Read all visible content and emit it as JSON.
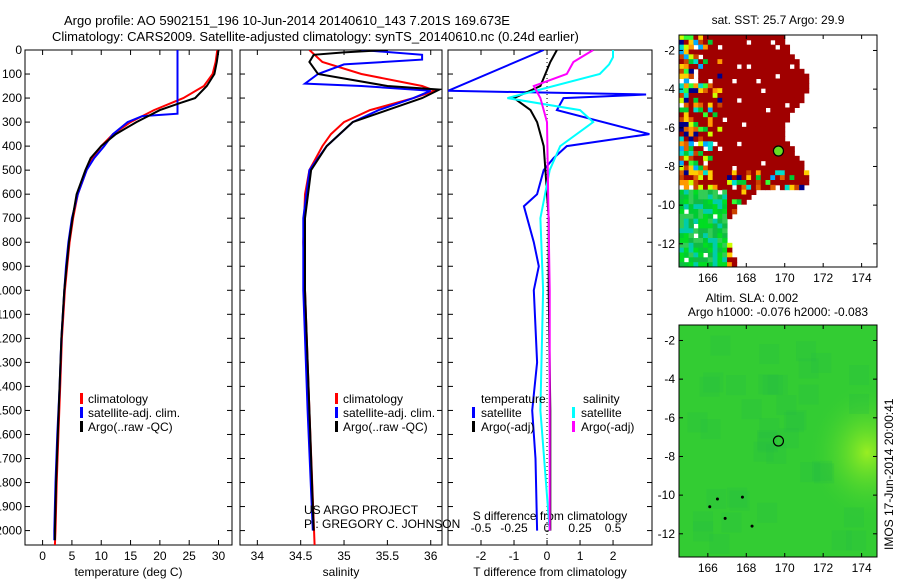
{
  "header": {
    "line1": "Argo profile: AO 5902151_196 10-Jun-2014 20140610_143 7.201S 169.673E",
    "line2": "Climatology: CARS2009. Satellite-adjusted climatology: synTS_20140610.nc (0.24d earlier)"
  },
  "colors": {
    "climatology": "#ff0000",
    "satellite": "#0000ff",
    "argo": "#000000",
    "sal_sat": "#00ffff",
    "sal_argo": "#ff00ff",
    "sst_main": "#a00000",
    "sla_main": "#33cc33"
  },
  "credit": {
    "line1": "US ARGO PROJECT",
    "line2": "PI: GREGORY C. JOHNSON"
  },
  "timestamp": "IMOS 17-Jun-2014 20:00:41",
  "chart_data": [
    {
      "type": "line",
      "id": "temperature",
      "xlabel": "temperature (deg C)",
      "ylabel": "",
      "xlim": [
        -3,
        32.3
      ],
      "ylim": [
        2060,
        0
      ],
      "xticks": [
        0,
        5,
        10,
        15,
        20,
        25,
        30
      ],
      "yticks": [
        0,
        100,
        200,
        300,
        400,
        500,
        600,
        700,
        800,
        900,
        1000,
        1100,
        1200,
        1300,
        1400,
        1500,
        1600,
        1700,
        1800,
        1900,
        2000
      ],
      "legend": [
        "climatology",
        "satellite-adj. clim.",
        "Argo(..raw -QC)"
      ],
      "series": [
        {
          "name": "climatology",
          "color": "#ff0000",
          "depth": [
            0,
            50,
            100,
            150,
            200,
            250,
            300,
            350,
            400,
            450,
            500,
            600,
            700,
            800,
            900,
            1000,
            1200,
            1400,
            1600,
            1800,
            2000,
            2060
          ],
          "values": [
            29.8,
            29.5,
            29,
            27.5,
            24,
            19,
            15,
            12,
            10,
            8.5,
            7.5,
            6,
            5.2,
            4.6,
            4.2,
            3.8,
            3.3,
            3.0,
            2.7,
            2.4,
            2.2,
            2.1
          ]
        },
        {
          "name": "satellite-adj. clim.",
          "color": "#0000ff",
          "depth": [
            0,
            265,
            275,
            300,
            350,
            400,
            450,
            500,
            600,
            700,
            800,
            900,
            1000,
            1200,
            1400,
            1600,
            1800,
            2000,
            2040
          ],
          "values": [
            23,
            23,
            17,
            14.5,
            12,
            10.5,
            8.8,
            7.5,
            6,
            5,
            4.4,
            4,
            3.7,
            3.2,
            2.9,
            2.5,
            2.2,
            2.0,
            2.0
          ]
        },
        {
          "name": "Argo(..raw -QC)",
          "color": "#000000",
          "depth": [
            0,
            50,
            100,
            150,
            200,
            220,
            250,
            300,
            350,
            400,
            450,
            500,
            600,
            700,
            800,
            900,
            1000,
            1200,
            1400,
            1600,
            1800,
            2000,
            2040
          ],
          "values": [
            30,
            29.7,
            29.3,
            28,
            26,
            23.5,
            20,
            16,
            12.5,
            10,
            8.2,
            7.3,
            5.8,
            5.1,
            4.5,
            4.1,
            3.7,
            3.2,
            2.9,
            2.6,
            2.3,
            2.1,
            2.1
          ]
        }
      ]
    },
    {
      "type": "line",
      "id": "salinity",
      "xlabel": "salinity",
      "xlim": [
        33.8,
        36.13
      ],
      "ylim": [
        2060,
        0
      ],
      "xticks": [
        34,
        34.5,
        35,
        35.5,
        36
      ],
      "legend": [
        "climatology",
        "satellite-adj. clim.",
        "Argo(..raw -QC)"
      ],
      "series": [
        {
          "name": "climatology",
          "color": "#ff0000",
          "depth": [
            0,
            50,
            100,
            150,
            170,
            200,
            250,
            300,
            350,
            400,
            500,
            600,
            800,
            1000,
            1500,
            2060
          ],
          "values": [
            34.6,
            34.75,
            35.2,
            35.9,
            36.05,
            35.8,
            35.3,
            35.0,
            34.85,
            34.75,
            34.6,
            34.55,
            34.53,
            34.55,
            34.6,
            34.66
          ]
        },
        {
          "name": "satellite-adj. clim.",
          "color": "#0000ff",
          "depth": [
            0,
            20,
            40,
            60,
            100,
            140,
            150,
            170,
            200,
            250,
            300,
            400,
            500,
            700,
            1000,
            1500,
            2000
          ],
          "values": [
            35.2,
            35.9,
            35.9,
            35.0,
            34.7,
            34.55,
            35.2,
            36.0,
            35.8,
            35.4,
            35.1,
            34.8,
            34.6,
            34.53,
            34.53,
            34.58,
            34.64
          ]
        },
        {
          "name": "Argo(..raw -QC)",
          "color": "#000000",
          "depth": [
            0,
            10,
            20,
            50,
            100,
            150,
            165,
            200,
            250,
            300,
            400,
            500,
            700,
            1000,
            1500,
            2000
          ],
          "values": [
            35.5,
            35.0,
            34.65,
            34.6,
            34.7,
            35.5,
            36.1,
            35.9,
            35.5,
            35.1,
            34.8,
            34.62,
            34.55,
            34.55,
            34.6,
            34.65
          ]
        }
      ]
    },
    {
      "type": "line",
      "id": "difference",
      "xlabel": "T difference from climatology",
      "x2label": "S difference from climatology",
      "xlim": [
        -3,
        3.18
      ],
      "x2lim": [
        -0.75,
        0.795
      ],
      "ylim": [
        2060,
        0
      ],
      "xticks": [
        -2,
        -1,
        0,
        1,
        2
      ],
      "x2ticks": [
        -0.5,
        -0.25,
        0,
        0.25,
        0.5
      ],
      "legend_headers": [
        "temperature",
        "salinity"
      ],
      "legend": [
        "satellite",
        "Argo(-adj)",
        "satellite",
        "Argo(-adj)"
      ],
      "series": [
        {
          "name": "T satellite",
          "axis": "T",
          "color": "#0000ff",
          "depth": [
            0,
            170,
            185,
            200,
            250,
            350,
            400,
            450,
            500,
            600,
            650,
            700,
            800,
            900,
            1000,
            1300,
            1500,
            1700,
            2000
          ],
          "values": [
            -0.1,
            -3.0,
            3.0,
            0.5,
            0.3,
            3.1,
            0.6,
            0.2,
            -0.1,
            -0.3,
            -0.7,
            -0.6,
            -0.4,
            -0.25,
            -0.4,
            -0.3,
            -0.45,
            -0.35,
            -0.3
          ]
        },
        {
          "name": "T Argo(-adj)",
          "axis": "T",
          "color": "#000000",
          "depth": [
            0,
            50,
            150,
            200,
            250,
            300,
            400,
            500,
            700,
            1000,
            1500,
            2000
          ],
          "values": [
            0.3,
            0.1,
            -0.2,
            -1.0,
            -0.5,
            -0.3,
            -0.1,
            -0.05,
            0.05,
            0.05,
            0.1,
            0.1
          ]
        },
        {
          "name": "S satellite",
          "axis": "S",
          "color": "#00ffff",
          "depth": [
            0,
            30,
            60,
            100,
            200,
            250,
            300,
            400,
            500,
            700,
            1000,
            1500,
            2000
          ],
          "values": [
            0.5,
            0.5,
            0.47,
            0.4,
            -0.3,
            0.25,
            0.35,
            0.1,
            0.02,
            -0.05,
            -0.03,
            -0.05,
            0.02
          ]
        },
        {
          "name": "S Argo(-adj)",
          "axis": "S",
          "color": "#ff00ff",
          "depth": [
            0,
            50,
            100,
            150,
            200,
            300,
            1000,
            2000
          ],
          "values": [
            0.35,
            0.2,
            0.15,
            -0.1,
            -0.05,
            0,
            0.02,
            0.02
          ]
        }
      ]
    },
    {
      "type": "heatmap",
      "id": "sst_map",
      "title": "sat. SST: 25.7 Argo: 29.9",
      "xlim": [
        164.5,
        174.8
      ],
      "ylim": [
        -13.2,
        -1.2
      ],
      "xticks": [
        166,
        168,
        170,
        172,
        174
      ],
      "yticks": [
        -2,
        -4,
        -6,
        -8,
        -10,
        -12
      ],
      "float_position": [
        169.673,
        -7.201
      ]
    },
    {
      "type": "heatmap",
      "id": "sla_map",
      "title": "Altim. SLA: 0.002",
      "subtitle": "Argo h1000: -0.076 h2000: -0.083",
      "xlim": [
        164.5,
        174.8
      ],
      "ylim": [
        -13.2,
        -1.2
      ],
      "xticks": [
        166,
        168,
        170,
        172,
        174
      ],
      "yticks": [
        -2,
        -4,
        -6,
        -8,
        -10,
        -12
      ],
      "float_position": [
        169.673,
        -7.201
      ]
    }
  ]
}
